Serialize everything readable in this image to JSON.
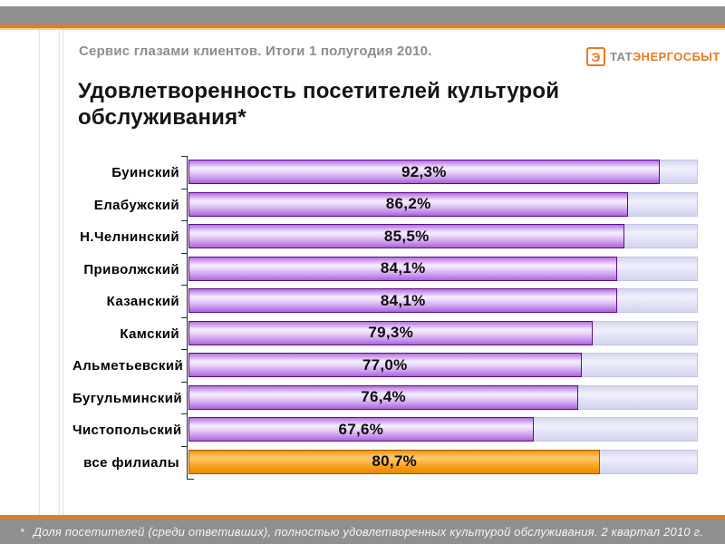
{
  "slide": {
    "header": "Сервис глазами клиентов. Итоги 1 полугодия 2010.",
    "title": "Удовлетворенность посетителей культурой обслуживания*",
    "footnote_marker": "*",
    "footnote": "Доля посетителей (среди ответивших), полностью удовлетворенных культурой обслуживания. 2 квартал 2010 г."
  },
  "logo": {
    "mark_letter": "Э",
    "text_gray": "ТАТ",
    "text_orange": "ЭНЕРГОСБЫТ"
  },
  "colors": {
    "accent_orange": "#e87a1f",
    "band_gray": "#8f8f8f",
    "bar_purple_border": "#5a0e86",
    "bar_purple_mid": "#b570e2",
    "bar_purple_light": "#f6efff",
    "bar_orange_border": "#a25800",
    "bar_orange_mid": "#f39200",
    "bar_orange_light": "#fdc96f",
    "track_fill": "#e3e4f8",
    "track_border": "#c6c2e7"
  },
  "chart_data": {
    "type": "bar",
    "orientation": "horizontal",
    "title": "Удовлетворенность посетителей культурой обслуживания*",
    "xlabel": "",
    "ylabel": "",
    "xlim": [
      0,
      100
    ],
    "grid": false,
    "legend": false,
    "categories": [
      "Буинский",
      "Елабужский",
      "Н.Челнинский",
      "Приволжский",
      "Казанский",
      "Камский",
      "Альметьевский",
      "Бугульминский",
      "Чистопольский",
      "все филиалы"
    ],
    "values": [
      92.3,
      86.2,
      85.5,
      84.1,
      84.1,
      79.3,
      77.0,
      76.4,
      67.6,
      80.7
    ],
    "value_labels": [
      "92,3%",
      "86,2%",
      "85,5%",
      "84,1%",
      "84,1%",
      "79,3%",
      "77,0%",
      "76,4%",
      "67,6%",
      "80,7%"
    ],
    "highlight_index": 9,
    "highlight_note": "row 'все филиалы' drawn in orange, all others purple; background track spans to 100%"
  }
}
